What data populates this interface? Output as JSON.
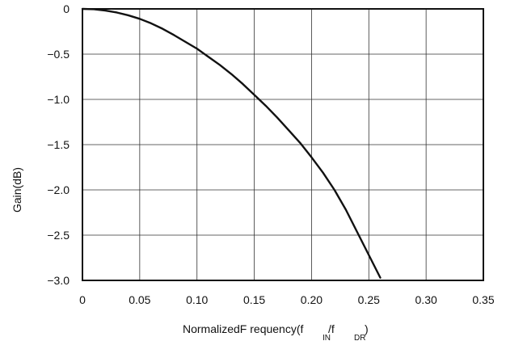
{
  "chart_data": {
    "type": "line",
    "title": "",
    "xlabel": {
      "main": "NormalizedF requency(f",
      "slash": "/f",
      "close": ")",
      "sub_in": "IN",
      "sub_dr": "DR"
    },
    "ylabel": "Gain(dB)",
    "xlim": [
      0,
      0.35
    ],
    "ylim": [
      -3.0,
      0
    ],
    "grid": true,
    "x_ticks": [
      "0",
      "0.05",
      "0.10",
      "0.15",
      "0.20",
      "0.25",
      "0.30",
      "0.35"
    ],
    "y_ticks": [
      "0",
      "−0.5",
      "−1.0",
      "−1.5",
      "−2.0",
      "−2.5",
      "−3.0"
    ],
    "x_tick_values": [
      0,
      0.05,
      0.1,
      0.15,
      0.2,
      0.25,
      0.3,
      0.35
    ],
    "y_tick_values": [
      0,
      -0.5,
      -1.0,
      -1.5,
      -2.0,
      -2.5,
      -3.0
    ],
    "series": [
      {
        "x": [
          0,
          0.01,
          0.02,
          0.03,
          0.04,
          0.05,
          0.06,
          0.07,
          0.08,
          0.09,
          0.1,
          0.11,
          0.12,
          0.13,
          0.14,
          0.15,
          0.16,
          0.17,
          0.18,
          0.19,
          0.2,
          0.21,
          0.22,
          0.23,
          0.24,
          0.25,
          0.26
        ],
        "values": [
          0,
          -0.004,
          -0.018,
          -0.04,
          -0.071,
          -0.11,
          -0.16,
          -0.22,
          -0.29,
          -0.365,
          -0.44,
          -0.53,
          -0.62,
          -0.72,
          -0.83,
          -0.95,
          -1.07,
          -1.2,
          -1.34,
          -1.48,
          -1.64,
          -1.81,
          -2.0,
          -2.22,
          -2.47,
          -2.72,
          -2.97
        ]
      }
    ],
    "colors": {
      "line": "#111111",
      "grid": "#333333",
      "frame": "#111111"
    }
  }
}
